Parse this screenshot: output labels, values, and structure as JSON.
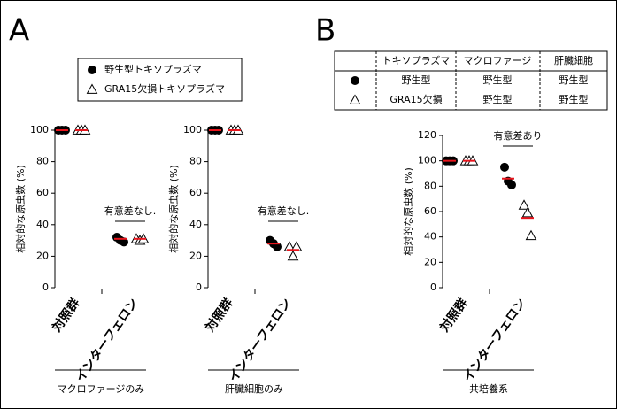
{
  "panels": [
    "A",
    "B"
  ],
  "legend": [
    {
      "marker": "circle",
      "label": "野生型トキソプラズマ"
    },
    {
      "marker": "triangle",
      "label": "GRA15欠損トキソプラズマ"
    }
  ],
  "table": {
    "header": [
      "トキソプラズマ",
      "マクロファージ",
      "肝臓細胞"
    ],
    "rows": [
      {
        "marker": "circle",
        "cells": [
          "野生型",
          "野生型",
          "野生型"
        ]
      },
      {
        "marker": "triangle",
        "cells": [
          "GRA15欠損",
          "野生型",
          "野生型"
        ]
      }
    ]
  },
  "chart_data": [
    {
      "type": "scatter",
      "ylabel": "相対的な原虫数 (%)",
      "ylim": [
        0,
        100
      ],
      "yticks": [
        0,
        20,
        40,
        60,
        80,
        100
      ],
      "categories": [
        "対照群",
        "インターフェロン"
      ],
      "annotation": "有意差なし.",
      "xlabel": "マクロファージのみ",
      "series": [
        {
          "marker": "circle",
          "color": "#000000",
          "mean_color": "#e8141c",
          "values": [
            [
              100,
              100,
              100
            ],
            [
              32,
              30,
              29
            ]
          ],
          "means": [
            100,
            31
          ]
        },
        {
          "marker": "triangle",
          "color": "#000000",
          "mean_color": "#e8141c",
          "values": [
            [
              100,
              100,
              100
            ],
            [
              31,
              30,
              31
            ]
          ],
          "means": [
            100,
            31
          ]
        }
      ]
    },
    {
      "type": "scatter",
      "ylabel": "相対的な原虫数 (%)",
      "ylim": [
        0,
        100
      ],
      "yticks": [
        0,
        20,
        40,
        60,
        80,
        100
      ],
      "categories": [
        "対照群",
        "インターフェロン"
      ],
      "annotation": "有意差なし.",
      "xlabel": "肝臓細胞のみ",
      "series": [
        {
          "marker": "circle",
          "color": "#000000",
          "mean_color": "#e8141c",
          "values": [
            [
              100,
              100,
              100
            ],
            [
              30,
              28,
              26
            ]
          ],
          "means": [
            100,
            28
          ]
        },
        {
          "marker": "triangle",
          "color": "#000000",
          "mean_color": "#e8141c",
          "values": [
            [
              100,
              100,
              100
            ],
            [
              26,
              20,
              26
            ]
          ],
          "means": [
            100,
            24
          ]
        }
      ]
    },
    {
      "type": "scatter",
      "ylabel": "相対的な原虫数 (%)",
      "ylim": [
        0,
        120
      ],
      "yticks": [
        0,
        20,
        40,
        60,
        80,
        100,
        120
      ],
      "categories": [
        "対照群",
        "インターフェロン"
      ],
      "annotation": "有意差あり",
      "xlabel": "共培養系",
      "series": [
        {
          "marker": "circle",
          "color": "#000000",
          "mean_color": "#e8141c",
          "values": [
            [
              100,
              100,
              100
            ],
            [
              95,
              84,
              81
            ]
          ],
          "means": [
            100,
            86
          ]
        },
        {
          "marker": "triangle",
          "color": "#000000",
          "mean_color": "#e8141c",
          "values": [
            [
              100,
              100,
              100
            ],
            [
              65,
              59,
              41
            ]
          ],
          "means": [
            100,
            55
          ]
        }
      ]
    }
  ]
}
